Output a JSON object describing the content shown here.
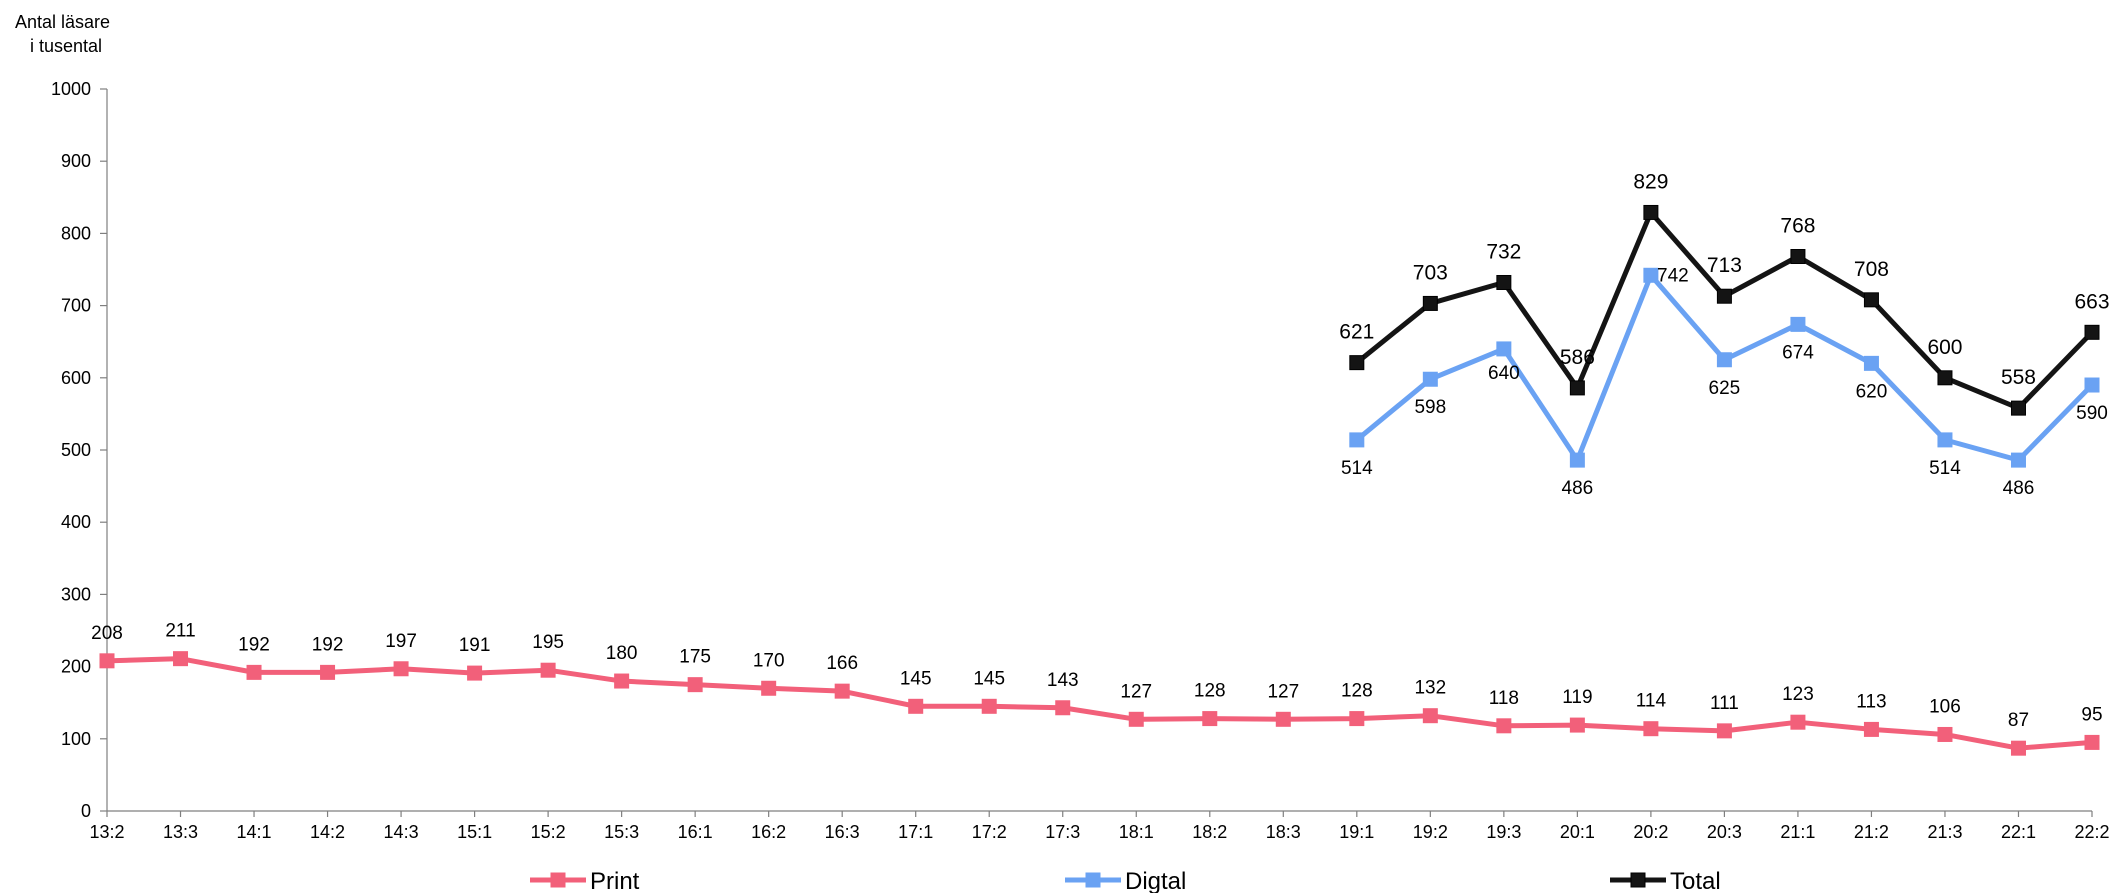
{
  "chart_data": {
    "type": "line",
    "title": "",
    "xlabel": "",
    "ylabel": [
      "Antal läsare",
      "i tusental"
    ],
    "ylim": [
      0,
      1000
    ],
    "yticks": [
      0,
      100,
      200,
      300,
      400,
      500,
      600,
      700,
      800,
      900,
      1000
    ],
    "grid": false,
    "legend_position": "bottom",
    "categories": [
      "13:2",
      "13:3",
      "14:1",
      "14:2",
      "14:3",
      "15:1",
      "15:2",
      "15:3",
      "16:1",
      "16:2",
      "16:3",
      "17:1",
      "17:2",
      "17:3",
      "18:1",
      "18:2",
      "18:3",
      "19:1",
      "19:2",
      "19:3",
      "20:1",
      "20:2",
      "20:3",
      "21:1",
      "21:2",
      "21:3",
      "22:1",
      "22:2"
    ],
    "series": [
      {
        "name": "Print",
        "color": "#f2607a",
        "values": [
          208,
          211,
          192,
          192,
          197,
          191,
          195,
          180,
          175,
          170,
          166,
          145,
          145,
          143,
          127,
          128,
          127,
          128,
          132,
          118,
          119,
          114,
          111,
          123,
          113,
          106,
          87,
          95
        ]
      },
      {
        "name": "Digtal",
        "color": "#6aa2f3",
        "values": [
          null,
          null,
          null,
          null,
          null,
          null,
          null,
          null,
          null,
          null,
          null,
          null,
          null,
          null,
          null,
          null,
          null,
          514,
          598,
          640,
          486,
          742,
          625,
          674,
          620,
          514,
          486,
          590
        ]
      },
      {
        "name": "Total",
        "color": "#141414",
        "values": [
          null,
          null,
          null,
          null,
          null,
          null,
          null,
          null,
          null,
          null,
          null,
          null,
          null,
          null,
          null,
          null,
          null,
          621,
          703,
          732,
          586,
          829,
          713,
          768,
          708,
          600,
          558,
          663
        ]
      }
    ]
  }
}
